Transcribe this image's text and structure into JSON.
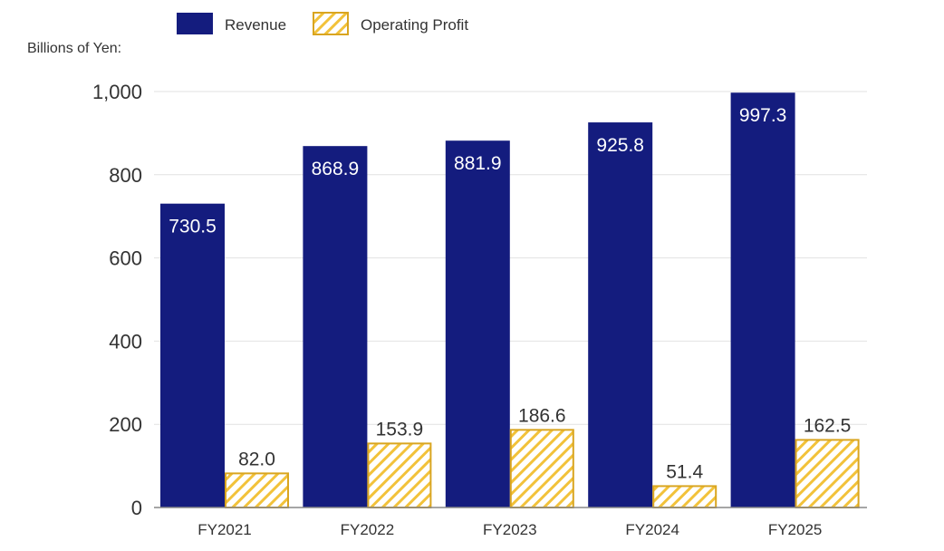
{
  "chart_data": {
    "type": "bar",
    "ylabel": "Billions of Yen:",
    "categories": [
      "FY2021",
      "FY2022",
      "FY2023",
      "FY2024",
      "FY2025"
    ],
    "series": [
      {
        "name": "Revenue",
        "values": [
          730.5,
          868.9,
          881.9,
          925.8,
          997.3
        ],
        "color": "#141c7e",
        "style": "solid"
      },
      {
        "name": "Operating Profit",
        "values": [
          82.0,
          153.9,
          186.6,
          51.4,
          162.5
        ],
        "color": "#d9a520",
        "style": "hatched"
      }
    ],
    "ylim": [
      0,
      1000
    ],
    "yticks": [
      0,
      200,
      400,
      600,
      800,
      1000
    ],
    "ytick_labels": [
      "0",
      "200",
      "400",
      "600",
      "800",
      "1,000"
    ],
    "grid": true,
    "legend": "top",
    "data_labels": true
  }
}
